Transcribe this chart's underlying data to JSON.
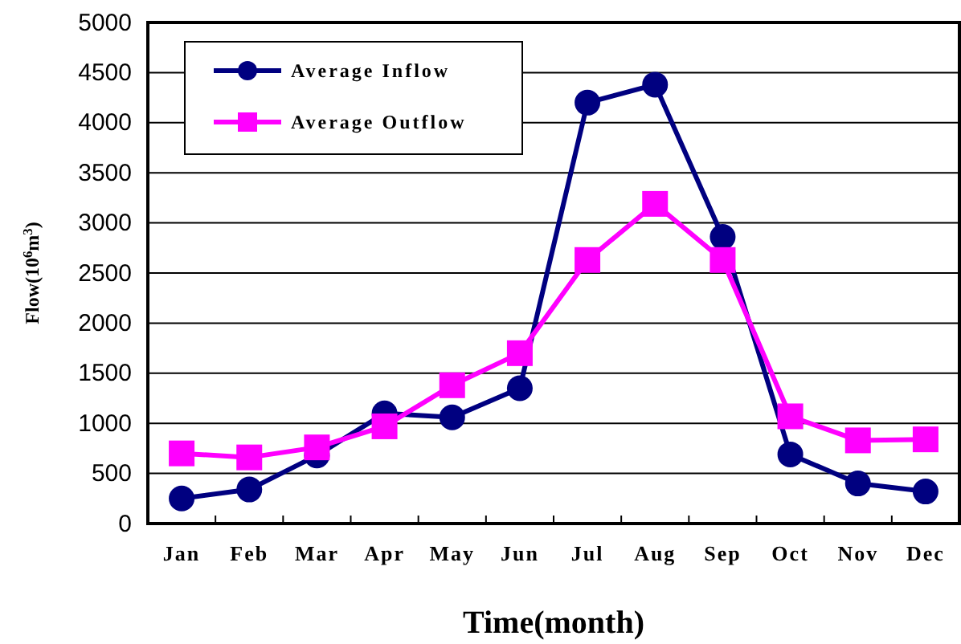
{
  "chart_data": {
    "type": "line",
    "xlabel": "Time(month)",
    "ylabel": "Flow(10$^{6}$m$^{3}$)",
    "categories": [
      "Jan",
      "Feb",
      "Mar",
      "Apr",
      "May",
      "Jun",
      "Jul",
      "Aug",
      "Sep",
      "Oct",
      "Nov",
      "Dec"
    ],
    "series": [
      {
        "name": "Average Inflow",
        "color": "#000080",
        "marker": "circle",
        "values": [
          250,
          340,
          680,
          1100,
          1060,
          1350,
          4200,
          4380,
          2860,
          690,
          400,
          320
        ]
      },
      {
        "name": "Average Outflow",
        "color": "#ff00ff",
        "marker": "square",
        "values": [
          700,
          660,
          760,
          970,
          1380,
          1700,
          2630,
          3190,
          2630,
          1070,
          830,
          840
        ]
      }
    ],
    "ylim": [
      0,
      5000
    ],
    "yticks": [
      0,
      500,
      1000,
      1500,
      2000,
      2500,
      3000,
      3500,
      4000,
      4500,
      5000
    ],
    "grid": "y",
    "legend": "top left",
    "line_style": "solid"
  }
}
